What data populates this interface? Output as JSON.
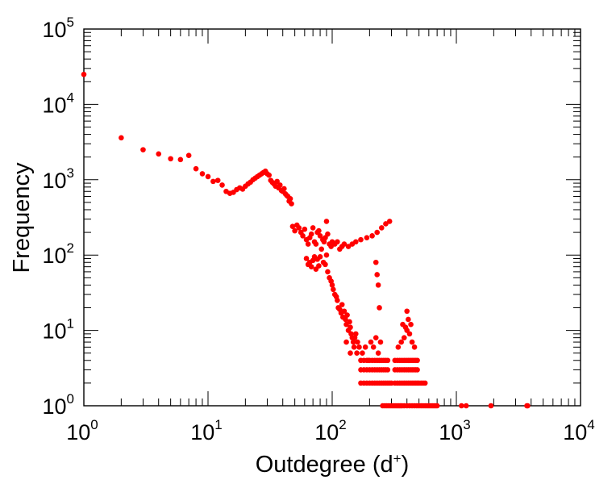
{
  "chart_data": {
    "type": "scatter",
    "xlabel": "Outdegree (d",
    "xlabel_sup": "+",
    "xlabel_suffix": ")",
    "ylabel": "Frequency",
    "xscale": "log",
    "yscale": "log",
    "xlim": [
      1,
      10000
    ],
    "ylim": [
      1,
      100000
    ],
    "grid": false,
    "legend": "none",
    "marker_color": "#ff0000",
    "x_ticks": [
      {
        "base": "10",
        "exp": "0"
      },
      {
        "base": "10",
        "exp": "1"
      },
      {
        "base": "10",
        "exp": "2"
      },
      {
        "base": "10",
        "exp": "3"
      },
      {
        "base": "10",
        "exp": "4"
      }
    ],
    "y_ticks": [
      {
        "base": "10",
        "exp": "0"
      },
      {
        "base": "10",
        "exp": "1"
      },
      {
        "base": "10",
        "exp": "2"
      },
      {
        "base": "10",
        "exp": "3"
      },
      {
        "base": "10",
        "exp": "4"
      },
      {
        "base": "10",
        "exp": "5"
      }
    ],
    "points": [
      [
        1,
        25000
      ],
      [
        2,
        3600
      ],
      [
        3,
        2500
      ],
      [
        4,
        2200
      ],
      [
        5,
        1900
      ],
      [
        6,
        1850
      ],
      [
        7,
        2100
      ],
      [
        8,
        1400
      ],
      [
        9,
        1200
      ],
      [
        10,
        1100
      ],
      [
        11,
        950
      ],
      [
        12,
        980
      ],
      [
        13,
        850
      ],
      [
        14,
        700
      ],
      [
        15,
        660
      ],
      [
        16,
        680
      ],
      [
        17,
        740
      ],
      [
        18,
        780
      ],
      [
        19,
        750
      ],
      [
        20,
        820
      ],
      [
        21,
        880
      ],
      [
        22,
        930
      ],
      [
        23,
        1000
      ],
      [
        24,
        1050
      ],
      [
        25,
        1100
      ],
      [
        26,
        1150
      ],
      [
        27,
        1200
      ],
      [
        28,
        1250
      ],
      [
        29,
        1300
      ],
      [
        30,
        1200
      ],
      [
        31,
        1150
      ],
      [
        32,
        980
      ],
      [
        33,
        920
      ],
      [
        34,
        880
      ],
      [
        35,
        820
      ],
      [
        36,
        950
      ],
      [
        37,
        780
      ],
      [
        38,
        850
      ],
      [
        39,
        720
      ],
      [
        40,
        700
      ],
      [
        41,
        760
      ],
      [
        42,
        650
      ],
      [
        43,
        620
      ],
      [
        44,
        600
      ],
      [
        45,
        520
      ],
      [
        46,
        560
      ],
      [
        47,
        480
      ],
      [
        48,
        240
      ],
      [
        50,
        210
      ],
      [
        52,
        250
      ],
      [
        54,
        230
      ],
      [
        56,
        200
      ],
      [
        58,
        180
      ],
      [
        60,
        220
      ],
      [
        62,
        160
      ],
      [
        64,
        140
      ],
      [
        66,
        170
      ],
      [
        68,
        190
      ],
      [
        70,
        230
      ],
      [
        72,
        150
      ],
      [
        74,
        140
      ],
      [
        76,
        200
      ],
      [
        78,
        210
      ],
      [
        80,
        180
      ],
      [
        82,
        120
      ],
      [
        84,
        160
      ],
      [
        86,
        150
      ],
      [
        88,
        170
      ],
      [
        90,
        280
      ],
      [
        92,
        190
      ],
      [
        95,
        140
      ],
      [
        98,
        130
      ],
      [
        100,
        150
      ],
      [
        105,
        140
      ],
      [
        110,
        150
      ],
      [
        115,
        120
      ],
      [
        120,
        130
      ],
      [
        125,
        140
      ],
      [
        135,
        130
      ],
      [
        145,
        140
      ],
      [
        155,
        150
      ],
      [
        170,
        160
      ],
      [
        190,
        170
      ],
      [
        210,
        180
      ],
      [
        230,
        200
      ],
      [
        250,
        230
      ],
      [
        270,
        260
      ],
      [
        290,
        280
      ],
      [
        62,
        90
      ],
      [
        64,
        75
      ],
      [
        66,
        80
      ],
      [
        68,
        70
      ],
      [
        70,
        85
      ],
      [
        72,
        95
      ],
      [
        74,
        65
      ],
      [
        76,
        88
      ],
      [
        78,
        72
      ],
      [
        80,
        95
      ],
      [
        85,
        80
      ],
      [
        88,
        75
      ],
      [
        90,
        100
      ],
      [
        92,
        60
      ],
      [
        95,
        50
      ],
      [
        98,
        45
      ],
      [
        100,
        40
      ],
      [
        102,
        35
      ],
      [
        105,
        30
      ],
      [
        108,
        28
      ],
      [
        110,
        25
      ],
      [
        112,
        20
      ],
      [
        115,
        19
      ],
      [
        118,
        17
      ],
      [
        120,
        22
      ],
      [
        122,
        15
      ],
      [
        125,
        18
      ],
      [
        128,
        14
      ],
      [
        130,
        12
      ],
      [
        132,
        16
      ],
      [
        135,
        10
      ],
      [
        138,
        13
      ],
      [
        140,
        11
      ],
      [
        142,
        9
      ],
      [
        145,
        8
      ],
      [
        148,
        7
      ],
      [
        150,
        6
      ],
      [
        152,
        8
      ],
      [
        155,
        9
      ],
      [
        158,
        5
      ],
      [
        160,
        7
      ],
      [
        130,
        7
      ],
      [
        140,
        5
      ],
      [
        165,
        6
      ],
      [
        175,
        5
      ],
      [
        185,
        6
      ],
      [
        195,
        4
      ],
      [
        205,
        7
      ],
      [
        215,
        6
      ],
      [
        225,
        8
      ],
      [
        235,
        5
      ],
      [
        245,
        7
      ],
      [
        225,
        80
      ],
      [
        230,
        55
      ],
      [
        235,
        40
      ],
      [
        240,
        20
      ],
      [
        170,
        4
      ],
      [
        180,
        4
      ],
      [
        190,
        4
      ],
      [
        200,
        4
      ],
      [
        210,
        4
      ],
      [
        220,
        4
      ],
      [
        230,
        4
      ],
      [
        240,
        4
      ],
      [
        250,
        4
      ],
      [
        260,
        4
      ],
      [
        270,
        4
      ],
      [
        280,
        4
      ],
      [
        170,
        3
      ],
      [
        180,
        3
      ],
      [
        190,
        3
      ],
      [
        200,
        3
      ],
      [
        210,
        3
      ],
      [
        220,
        3
      ],
      [
        230,
        3
      ],
      [
        240,
        3
      ],
      [
        250,
        3
      ],
      [
        260,
        3
      ],
      [
        270,
        3
      ],
      [
        280,
        3
      ],
      [
        170,
        2
      ],
      [
        180,
        2
      ],
      [
        190,
        2
      ],
      [
        200,
        2
      ],
      [
        210,
        2
      ],
      [
        220,
        2
      ],
      [
        230,
        2
      ],
      [
        240,
        2
      ],
      [
        250,
        2
      ],
      [
        260,
        2
      ],
      [
        270,
        2
      ],
      [
        280,
        2
      ],
      [
        290,
        2
      ],
      [
        300,
        2
      ],
      [
        255,
        1
      ],
      [
        265,
        1
      ],
      [
        275,
        1
      ],
      [
        285,
        1
      ],
      [
        295,
        1
      ],
      [
        305,
        1
      ],
      [
        315,
        1
      ],
      [
        325,
        1
      ],
      [
        335,
        1
      ],
      [
        345,
        1
      ],
      [
        355,
        1
      ],
      [
        365,
        1
      ],
      [
        320,
        4
      ],
      [
        335,
        4
      ],
      [
        350,
        4
      ],
      [
        365,
        4
      ],
      [
        380,
        4
      ],
      [
        395,
        4
      ],
      [
        410,
        4
      ],
      [
        425,
        4
      ],
      [
        440,
        4
      ],
      [
        455,
        4
      ],
      [
        470,
        4
      ],
      [
        485,
        4
      ],
      [
        320,
        3
      ],
      [
        335,
        3
      ],
      [
        350,
        3
      ],
      [
        365,
        3
      ],
      [
        380,
        3
      ],
      [
        395,
        3
      ],
      [
        410,
        3
      ],
      [
        425,
        3
      ],
      [
        440,
        3
      ],
      [
        455,
        3
      ],
      [
        470,
        3
      ],
      [
        485,
        3
      ],
      [
        320,
        2
      ],
      [
        335,
        2
      ],
      [
        350,
        2
      ],
      [
        365,
        2
      ],
      [
        380,
        2
      ],
      [
        395,
        2
      ],
      [
        410,
        2
      ],
      [
        425,
        2
      ],
      [
        440,
        2
      ],
      [
        455,
        2
      ],
      [
        470,
        2
      ],
      [
        485,
        2
      ],
      [
        500,
        2
      ],
      [
        520,
        2
      ],
      [
        540,
        2
      ],
      [
        560,
        2
      ],
      [
        380,
        1
      ],
      [
        400,
        1
      ],
      [
        420,
        1
      ],
      [
        440,
        1
      ],
      [
        460,
        1
      ],
      [
        480,
        1
      ],
      [
        500,
        1
      ],
      [
        520,
        1
      ],
      [
        540,
        1
      ],
      [
        560,
        1
      ],
      [
        580,
        1
      ],
      [
        600,
        1
      ],
      [
        620,
        1
      ],
      [
        640,
        1
      ],
      [
        660,
        1
      ],
      [
        680,
        1
      ],
      [
        700,
        1
      ],
      [
        340,
        6
      ],
      [
        360,
        7
      ],
      [
        380,
        8
      ],
      [
        400,
        10
      ],
      [
        420,
        9
      ],
      [
        440,
        7
      ],
      [
        460,
        6
      ],
      [
        370,
        12
      ],
      [
        390,
        11
      ],
      [
        410,
        14
      ],
      [
        430,
        12
      ],
      [
        400,
        18
      ],
      [
        1100,
        1
      ],
      [
        1200,
        1
      ],
      [
        1900,
        1
      ],
      [
        3700,
        1
      ],
      [
        3750,
        1
      ]
    ]
  }
}
